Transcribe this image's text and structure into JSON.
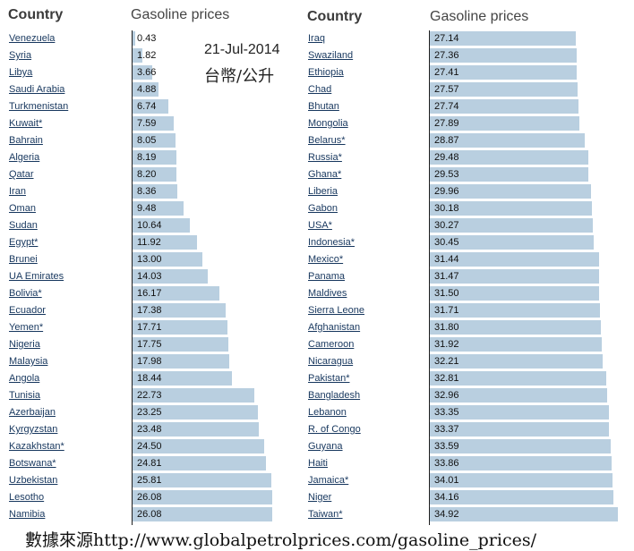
{
  "left_headers": {
    "country": "Country",
    "prices": "Gasoline prices"
  },
  "right_headers": {
    "country": "Country",
    "prices": "Gasoline prices"
  },
  "date": "21-Jul-2014",
  "unit": "台幣/公升",
  "source": "數據來源http://www.globalpetrolprices.com/gasoline_prices/",
  "colors": {
    "bar": "#b9cfe0",
    "country_text": "#17375e"
  },
  "chart_data": [
    {
      "type": "bar",
      "orientation": "horizontal",
      "title": "",
      "categories": [
        "Venezuela",
        "Syria",
        "Libya",
        "Saudi Arabia",
        "Turkmenistan",
        "Kuwait*",
        "Bahrain",
        "Algeria",
        "Qatar",
        "Iran",
        "Oman",
        "Sudan",
        "Egypt*",
        "Brunei",
        "UA Emirates",
        "Bolivia*",
        "Ecuador",
        "Yemen*",
        "Nigeria",
        "Malaysia",
        "Angola",
        "Tunisia",
        "Azerbaijan",
        "Kyrgyzstan",
        "Kazakhstan*",
        "Botswana*",
        "Uzbekistan",
        "Lesotho",
        "Namibia"
      ],
      "values": [
        0.43,
        1.82,
        3.66,
        4.88,
        6.74,
        7.59,
        8.05,
        8.19,
        8.2,
        8.36,
        9.48,
        10.64,
        11.92,
        13.0,
        14.03,
        16.17,
        17.38,
        17.71,
        17.75,
        17.98,
        18.44,
        22.73,
        23.25,
        23.48,
        24.5,
        24.81,
        25.81,
        26.08,
        26.08
      ],
      "value_labels": [
        "0.43",
        "1.82",
        "3.66",
        "4.88",
        "6.74",
        "7.59",
        "8.05",
        "8.19",
        "8.20",
        "8.36",
        "9.48",
        "10.64",
        "11.92",
        "13.00",
        "14.03",
        "16.17",
        "17.38",
        "17.71",
        "17.75",
        "17.98",
        "18.44",
        "22.73",
        "23.25",
        "23.48",
        "24.50",
        "24.81",
        "25.81",
        "26.08",
        "26.08"
      ],
      "xlim": [
        0,
        35
      ]
    },
    {
      "type": "bar",
      "orientation": "horizontal",
      "title": "",
      "categories": [
        "Iraq",
        "Swaziland",
        "Ethiopia",
        "Chad",
        "Bhutan",
        "Mongolia",
        "Belarus*",
        "Russia*",
        "Ghana*",
        "Liberia",
        "Gabon",
        "USA*",
        "Indonesia*",
        "Mexico*",
        "Panama",
        "Maldives",
        "Sierra Leone",
        "Afghanistan",
        "Cameroon",
        "Nicaragua",
        "Pakistan*",
        "Bangladesh",
        "Lebanon",
        "R. of Congo",
        "Guyana",
        "Haiti",
        "Jamaica*",
        "Niger",
        "Taiwan*"
      ],
      "values": [
        27.14,
        27.36,
        27.41,
        27.57,
        27.74,
        27.89,
        28.87,
        29.48,
        29.53,
        29.96,
        30.18,
        30.27,
        30.45,
        31.44,
        31.47,
        31.5,
        31.71,
        31.8,
        31.92,
        32.21,
        32.81,
        32.96,
        33.35,
        33.37,
        33.59,
        33.86,
        34.01,
        34.16,
        34.92
      ],
      "value_labels": [
        "27.14",
        "27.36",
        "27.41",
        "27.57",
        "27.74",
        "27.89",
        "28.87",
        "29.48",
        "29.53",
        "29.96",
        "30.18",
        "30.27",
        "30.45",
        "31.44",
        "31.47",
        "31.50",
        "31.71",
        "31.80",
        "31.92",
        "32.21",
        "32.81",
        "32.96",
        "33.35",
        "33.37",
        "33.59",
        "33.86",
        "34.01",
        "34.16",
        "34.92"
      ],
      "xlim": [
        0,
        35
      ]
    }
  ]
}
